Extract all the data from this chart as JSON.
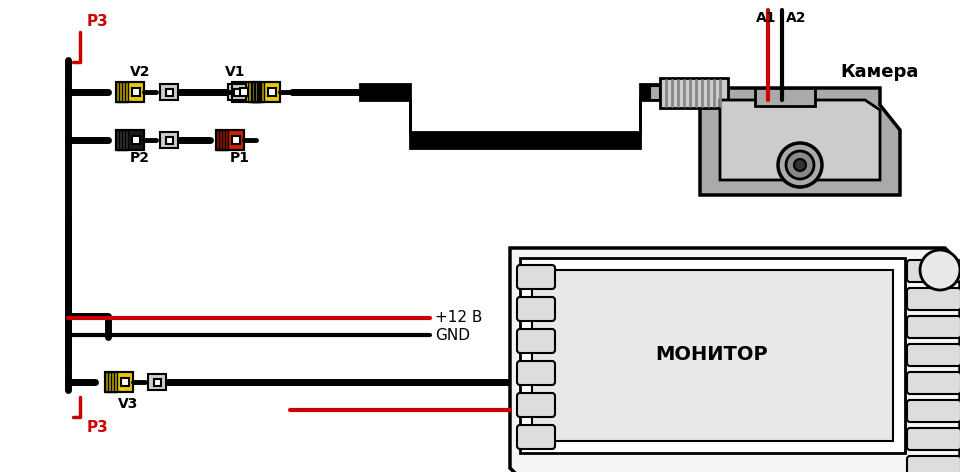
{
  "bg_color": "#ffffff",
  "black": "#000000",
  "red": "#cc0000",
  "yellow": "#e8c800",
  "yellow_dark": "#b8a000",
  "gray_light": "#cccccc",
  "gray_med": "#aaaaaa",
  "gray_dark": "#888888",
  "label_P3_top": "P3",
  "label_P3_bot": "P3",
  "label_V2": "V2",
  "label_V1": "V1",
  "label_P2": "P2",
  "label_P1": "P1",
  "label_V3": "V3",
  "label_A1": "A1",
  "label_A2": "A2",
  "label_camera": "Камера",
  "label_monitor": "МОНИТОР",
  "label_12v": "+12 В",
  "label_gnd": "GND"
}
